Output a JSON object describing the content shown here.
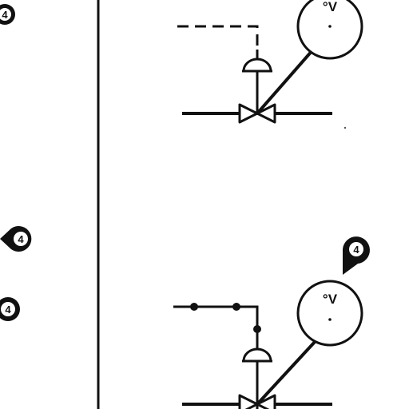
{
  "diagram": {
    "line_color": "#111111",
    "background": "#ffffff",
    "callouts": {
      "top_left": "4",
      "mid_left": "4",
      "lower_left": "4",
      "right": "4"
    },
    "instrument_top": {
      "label": "°V"
    },
    "instrument_bottom": {
      "label": "°V"
    },
    "signal_top": "pneumatic-dashed",
    "signal_bottom": "electric-dotted",
    "icons": [
      "callout-marker-icon",
      "control-valve-icon",
      "diaphragm-actuator-icon",
      "instrument-balloon-icon"
    ]
  }
}
